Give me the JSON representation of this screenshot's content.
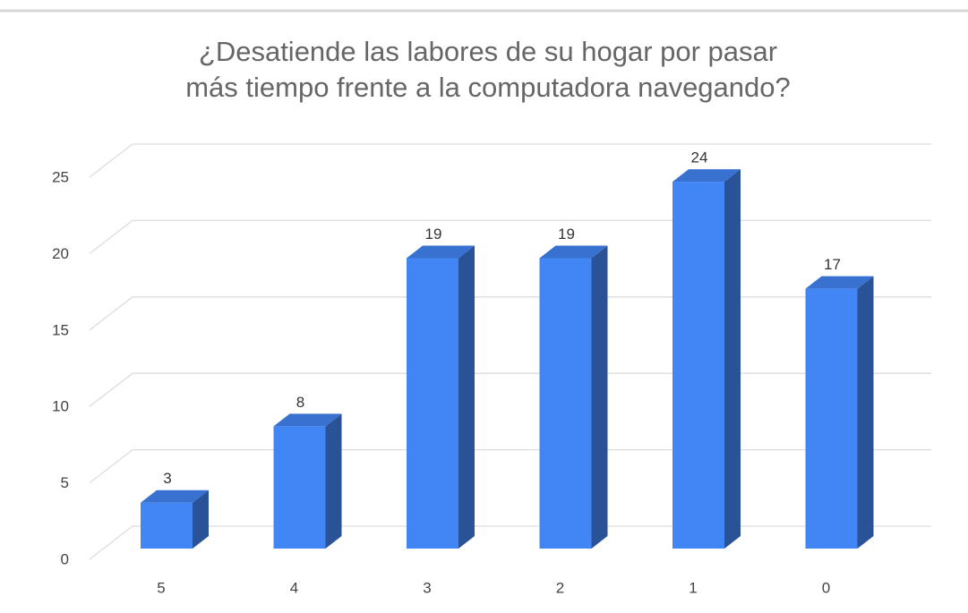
{
  "chart_data": {
    "type": "bar3d",
    "title": [
      "¿Desatiende las labores de su hogar por pasar",
      "más tiempo frente a la computadora navegando?"
    ],
    "categories": [
      "5",
      "4",
      "3",
      "2",
      "1",
      "0"
    ],
    "values": [
      3,
      8,
      19,
      19,
      24,
      17
    ],
    "color": "#4285f4",
    "ylim": [
      0,
      25
    ],
    "yticks": [
      0,
      5,
      10,
      15,
      20,
      25
    ],
    "grid": true
  }
}
